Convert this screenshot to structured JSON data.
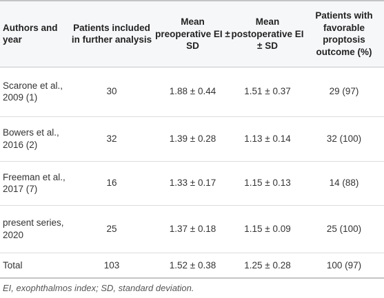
{
  "table": {
    "headers": [
      "Authors and year",
      "Patients included in further analysis",
      "Mean preoperative EI ± SD",
      "Mean postoperative EI ± SD",
      "Patients with favorable proptosis outcome (%)"
    ],
    "rows": [
      [
        "Scarone et al., 2009 (1)",
        "30",
        "1.88 ± 0.44",
        "1.51 ± 0.37",
        "29 (97)"
      ],
      [
        "Bowers et al., 2016 (2)",
        "32",
        "1.39 ± 0.28",
        "1.13 ± 0.14",
        "32 (100)"
      ],
      [
        "Freeman et al., 2017 (7)",
        "16",
        "1.33 ± 0.17",
        "1.15 ± 0.13",
        "14 (88)"
      ],
      [
        "present series, 2020",
        "25",
        "1.37 ± 0.18",
        "1.15 ± 0.09",
        "25 (100)"
      ],
      [
        "Total",
        "103",
        "1.52 ± 0.38",
        "1.25 ± 0.28",
        "100 (97)"
      ]
    ]
  },
  "footnote": "EI, exophthalmos index; SD, standard deviation."
}
